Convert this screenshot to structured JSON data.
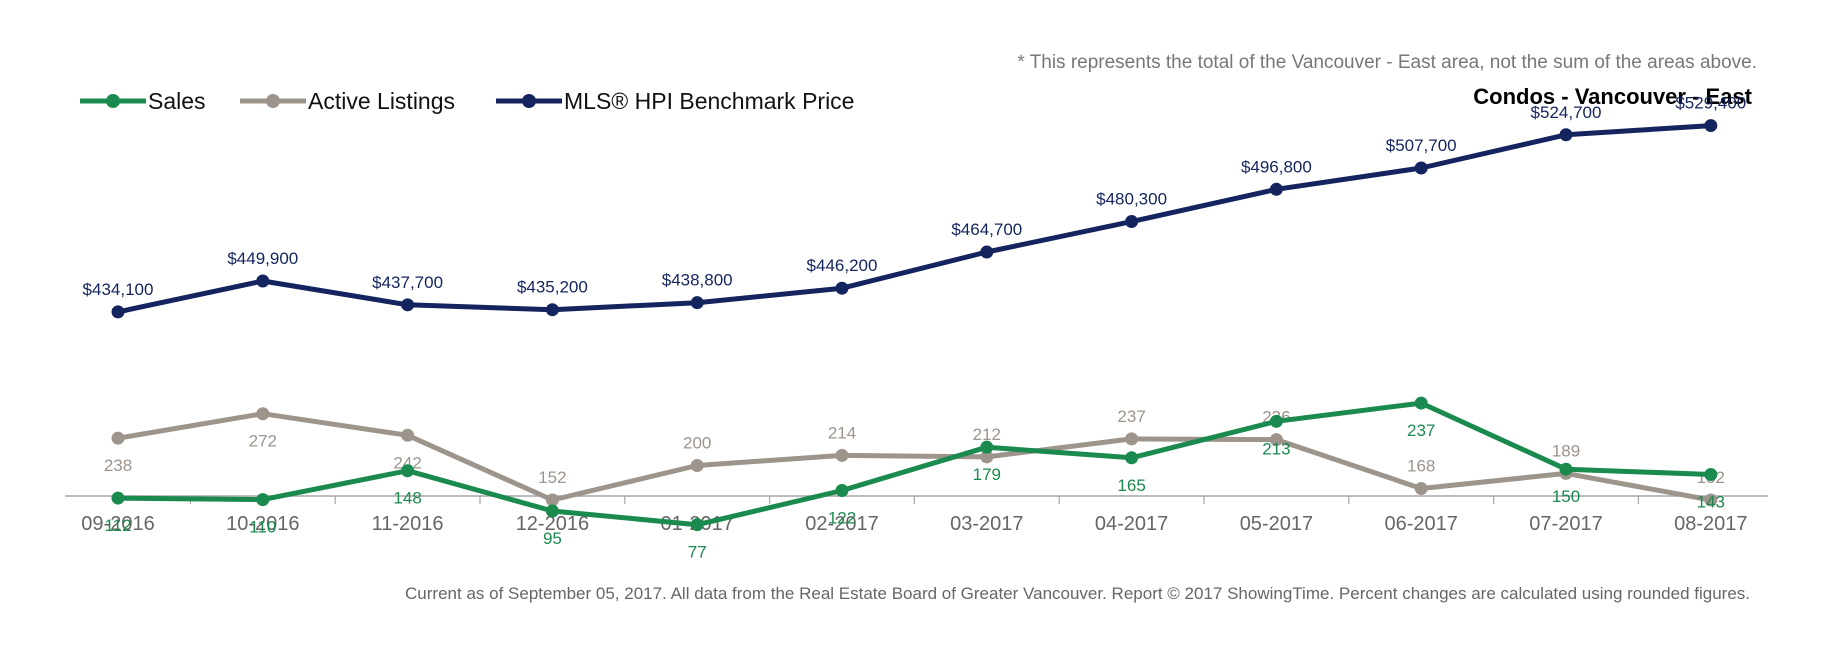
{
  "chart_data": {
    "type": "line",
    "note": "* This represents the total of the Vancouver - East area, not the sum of the areas above.",
    "title": "Condos - Vancouver - East",
    "footer": "Current as of September 05, 2017. All data from the Real Estate Board of Greater Vancouver. Report © 2017 ShowingTime. Percent changes are calculated using rounded figures.",
    "categories": [
      "09-2016",
      "10-2016",
      "11-2016",
      "12-2016",
      "01-2017",
      "02-2017",
      "03-2017",
      "04-2017",
      "05-2017",
      "06-2017",
      "07-2017",
      "08-2017"
    ],
    "series": [
      {
        "name": "Sales",
        "color": "#1a8a4e",
        "values": [
          112,
          110,
          148,
          95,
          77,
          122,
          179,
          165,
          213,
          237,
          150,
          143
        ],
        "labels": [
          "112",
          "110",
          "148",
          "95",
          "77",
          "122",
          "179",
          "165",
          "213",
          "237",
          "150",
          "143"
        ],
        "label_positions": [
          "below",
          "below",
          "below",
          "below",
          "below",
          "below",
          "below",
          "below",
          "below",
          "below",
          "below",
          "below"
        ]
      },
      {
        "name": "Active Listings",
        "color": "#9d948c",
        "values": [
          238,
          272,
          242,
          152,
          200,
          214,
          212,
          237,
          236,
          168,
          189,
          152
        ],
        "labels": [
          "238",
          "272",
          "242",
          "152",
          "200",
          "214",
          "212",
          "237",
          "236",
          "168",
          "189",
          "152"
        ],
        "label_positions": [
          "below",
          "below",
          "below",
          "above",
          "above",
          "above",
          "above",
          "above",
          "above",
          "above",
          "above",
          "above"
        ]
      },
      {
        "name": "MLS® HPI Benchmark Price",
        "color": "#14245e",
        "values": [
          434100,
          449900,
          437700,
          435200,
          438800,
          446200,
          464700,
          480300,
          496800,
          507700,
          524700,
          529400
        ],
        "labels": [
          "$434,100",
          "$449,900",
          "$437,700",
          "$435,200",
          "$438,800",
          "$446,200",
          "$464,700",
          "$480,300",
          "$496,800",
          "$507,700",
          "$524,700",
          "$529,400"
        ],
        "label_positions": [
          "above",
          "above",
          "above",
          "above",
          "above",
          "above",
          "above",
          "above",
          "above",
          "above",
          "above",
          "above"
        ]
      }
    ],
    "legend_position": "top-left",
    "grid": false
  }
}
